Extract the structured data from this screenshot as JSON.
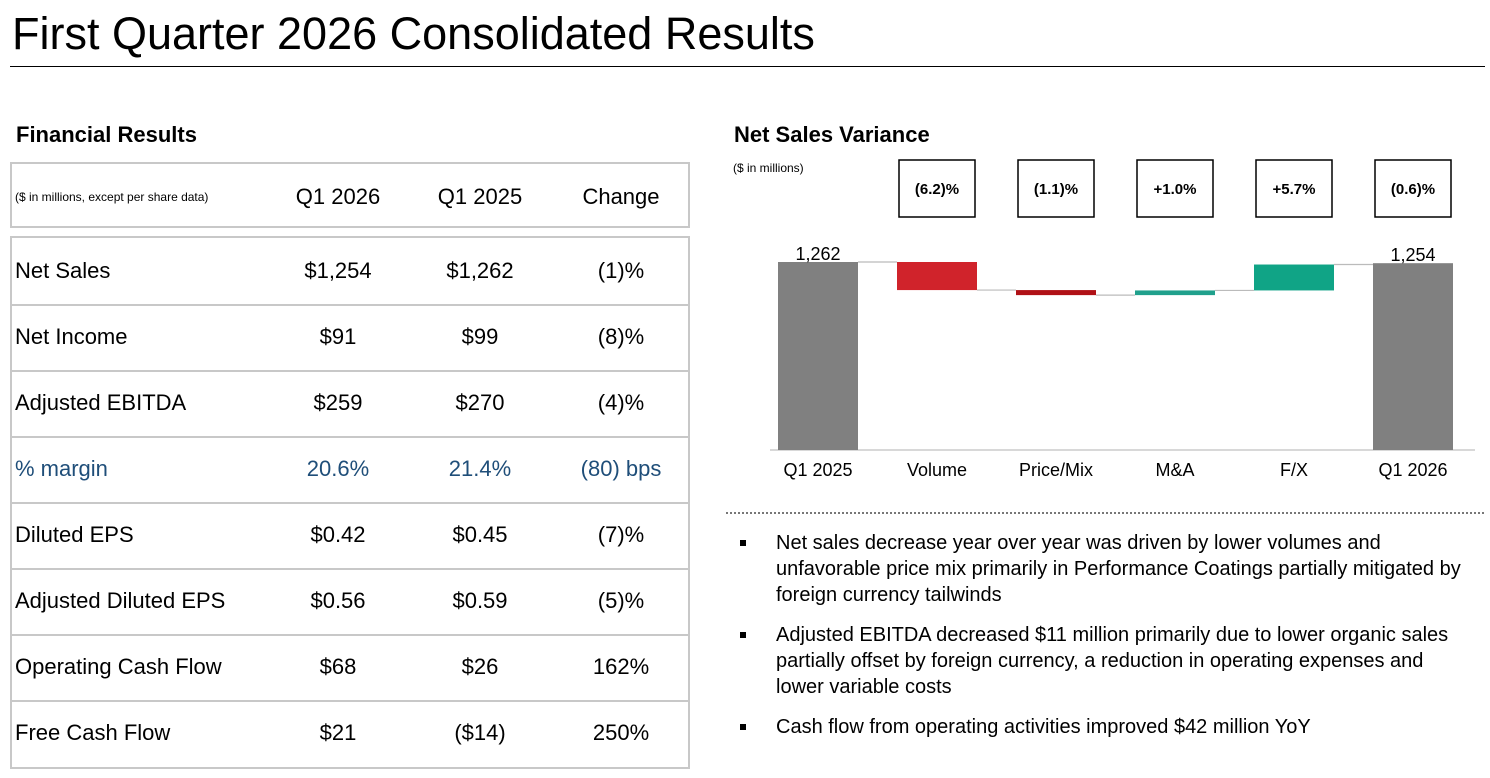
{
  "page": {
    "title": "First Quarter 2026 Consolidated Results"
  },
  "financial_results": {
    "title": "Financial Results",
    "header": {
      "note": "($ in millions, except per share data)",
      "col1": "Q1 2026",
      "col2": "Q1 2025",
      "col3": "Change"
    },
    "rows": [
      {
        "label": "Net Sales",
        "q1_2026": "$1,254",
        "q1_2025": "$1,262",
        "change": "(1)%"
      },
      {
        "label": "Net Income",
        "q1_2026": "$91",
        "q1_2025": "$99",
        "change": "(8)%"
      },
      {
        "label": "Adjusted EBITDA",
        "q1_2026": "$259",
        "q1_2025": "$270",
        "change": "(4)%"
      },
      {
        "label": "% margin",
        "q1_2026": "20.6%",
        "q1_2025": "21.4%",
        "change": "(80) bps"
      },
      {
        "label": "Diluted EPS",
        "q1_2026": "$0.42",
        "q1_2025": "$0.45",
        "change": "(7)%"
      },
      {
        "label": "Adjusted Diluted EPS",
        "q1_2026": "$0.56",
        "q1_2025": "$0.59",
        "change": "(5)%"
      },
      {
        "label": "Operating Cash Flow",
        "q1_2026": "$68",
        "q1_2025": "$26",
        "change": "162%"
      },
      {
        "label": "Free Cash Flow",
        "q1_2026": "$21",
        "q1_2025": "($14)",
        "change": "250%"
      }
    ]
  },
  "net_sales_variance": {
    "title": "Net Sales Variance",
    "unit_label": "($ in millions)",
    "bullets": [
      "Net sales decrease year over year was driven by lower volumes and unfavorable price mix primarily in Performance Coatings partially mitigated by foreign currency tailwinds",
      "Adjusted EBITDA decreased $11 million primarily due to lower organic sales partially offset by foreign currency, a reduction in operating expenses and lower variable costs",
      "Cash flow from operating activities improved $42 million YoY"
    ]
  },
  "chart_data": {
    "type": "bar",
    "subtype": "waterfall",
    "categories": [
      "Q1 2025",
      "Volume",
      "Price/Mix",
      "M&A",
      "F/X",
      "Q1 2026"
    ],
    "values": [
      1262,
      -78,
      -14,
      13,
      72,
      1254
    ],
    "bar_kinds": [
      "total",
      "delta",
      "delta",
      "delta",
      "delta",
      "total"
    ],
    "value_labels": [
      "1,262",
      "",
      "",
      "",
      "",
      "1,254"
    ],
    "change_labels": [
      "",
      "(6.2)%",
      "(1.1)%",
      "+1.0%",
      "+5.7%",
      "(0.6)%"
    ],
    "colors": {
      "total": "#808080",
      "negative_large": "#d0232b",
      "negative_small": "#b01116",
      "positive_small": "#20a08c",
      "positive_large": "#10a486",
      "connector": "#bbbbbb"
    },
    "ylabel": "($ in millions)",
    "grid": false,
    "legend": "none"
  }
}
